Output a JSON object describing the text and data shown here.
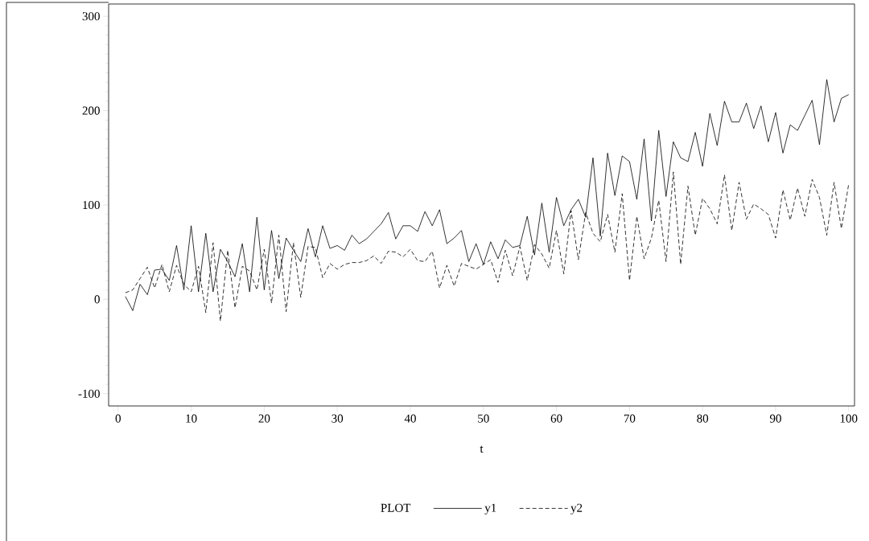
{
  "chart_data": {
    "type": "line",
    "xlabel": "t",
    "legend_title": "PLOT",
    "legend": "bottom",
    "grid": false,
    "marker": "none",
    "x": [
      1,
      2,
      3,
      4,
      5,
      6,
      7,
      8,
      9,
      10,
      11,
      12,
      13,
      14,
      15,
      16,
      17,
      18,
      19,
      20,
      21,
      22,
      23,
      24,
      25,
      26,
      27,
      28,
      29,
      30,
      31,
      32,
      33,
      34,
      35,
      36,
      37,
      38,
      39,
      40,
      41,
      42,
      43,
      44,
      45,
      46,
      47,
      48,
      49,
      50,
      51,
      52,
      53,
      54,
      55,
      56,
      57,
      58,
      59,
      60,
      61,
      62,
      63,
      64,
      65,
      66,
      67,
      68,
      69,
      70,
      71,
      72,
      73,
      74,
      75,
      76,
      77,
      78,
      79,
      80,
      81,
      82,
      83,
      84,
      85,
      86,
      87,
      88,
      89,
      90,
      91,
      92,
      93,
      94,
      95,
      96,
      97,
      98,
      99,
      100
    ],
    "series": [
      {
        "name": "y1",
        "color": "#000000",
        "line_style": "solid",
        "values": [
          3,
          -12,
          16,
          5,
          31,
          32,
          20,
          57,
          10,
          78,
          8,
          70,
          8,
          53,
          40,
          24,
          59,
          8,
          87,
          10,
          73,
          22,
          65,
          52,
          40,
          75,
          45,
          78,
          54,
          57,
          52,
          68,
          59,
          64,
          72,
          80,
          92,
          64,
          78,
          78,
          72,
          93,
          78,
          95,
          59,
          65,
          73,
          40,
          59,
          37,
          61,
          43,
          63,
          55,
          57,
          88,
          47,
          102,
          50,
          108,
          78,
          95,
          106,
          87,
          150,
          67,
          155,
          110,
          152,
          146,
          106,
          170,
          83,
          179,
          109,
          167,
          150,
          146,
          177,
          141,
          197,
          163,
          210,
          188,
          188,
          208,
          181,
          205,
          167,
          198,
          155,
          185,
          179,
          195,
          211,
          164,
          233,
          188,
          213,
          217
        ]
      },
      {
        "name": "y2",
        "color": "#000000",
        "line_style": "dashed",
        "values": [
          7,
          10,
          22,
          34,
          12,
          37,
          8,
          36,
          16,
          8,
          35,
          -14,
          60,
          -23,
          52,
          -9,
          35,
          30,
          10,
          53,
          -4,
          68,
          -13,
          60,
          2,
          56,
          55,
          23,
          38,
          32,
          37,
          39,
          39,
          41,
          46,
          38,
          51,
          50,
          45,
          53,
          41,
          40,
          51,
          12,
          36,
          14,
          38,
          35,
          32,
          37,
          42,
          18,
          52,
          25,
          56,
          20,
          58,
          48,
          33,
          73,
          27,
          94,
          42,
          92,
          70,
          61,
          90,
          50,
          112,
          20,
          88,
          43,
          65,
          105,
          40,
          135,
          37,
          120,
          68,
          107,
          96,
          80,
          132,
          73,
          124,
          85,
          101,
          96,
          90,
          65,
          116,
          84,
          118,
          88,
          127,
          108,
          68,
          124,
          75,
          122
        ]
      }
    ],
    "xlim": [
      -1.3,
      100.8
    ],
    "ylim": [
      -113,
      313
    ],
    "xticks": [
      0,
      10,
      20,
      30,
      40,
      50,
      60,
      70,
      80,
      90,
      100
    ],
    "yticks": [
      -100,
      0,
      100,
      200,
      300
    ]
  }
}
